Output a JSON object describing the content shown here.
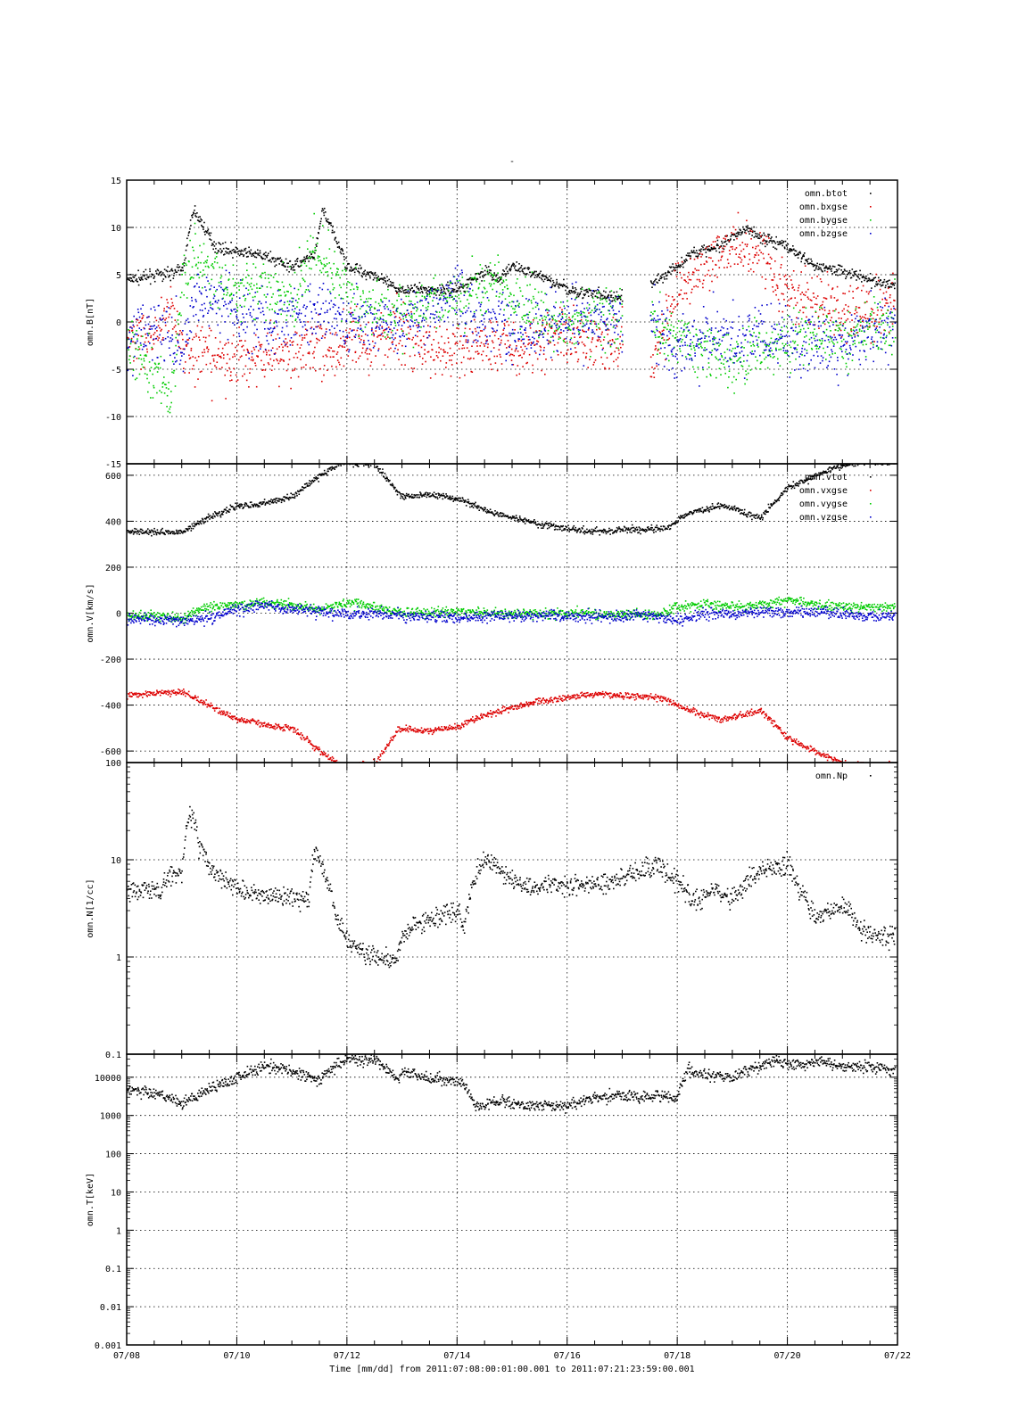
{
  "figure": {
    "title": "-",
    "footer": "Time [mm/dd]  from 2011:07:08:00:01:00.001  to  2011:07:21:23:59:00.001",
    "x_tick_labels": [
      "07/08",
      "07/10",
      "07/12",
      "07/14",
      "07/16",
      "07/18",
      "07/20",
      "07/22"
    ]
  },
  "colors": {
    "black": "#000000",
    "red": "#dd0000",
    "green": "#00cc00",
    "blue": "#0000cc"
  },
  "chart_data": [
    {
      "type": "scatter",
      "ylabel": "omn.B[nT]",
      "ylim": [
        -15,
        15
      ],
      "yscale": "linear",
      "xlim": [
        "07/08",
        "07/22"
      ],
      "ytick_labels": [
        "-15",
        "-10",
        "-5",
        "0",
        "5",
        "10",
        "15"
      ],
      "grid": true,
      "legend_position": "top-right",
      "series": [
        {
          "name": "omn.btot",
          "color": "#000000",
          "noise": 0.4,
          "x": [
            0,
            0.5,
            1.0,
            1.2,
            1.4,
            1.6,
            2.0,
            2.5,
            3.0,
            3.4,
            3.55,
            3.7,
            4.0,
            4.5,
            4.9,
            5.0,
            5.5,
            6.0,
            6.5,
            6.75,
            7.0,
            7.5,
            8.0,
            8.5,
            9.0,
            9.3,
            9.5,
            10.0,
            10.3,
            10.8,
            11.0,
            11.3,
            11.5,
            12.0,
            12.5,
            13.0,
            13.5,
            13.95
          ],
          "y": [
            4.5,
            5,
            5.5,
            12,
            10,
            8,
            7.5,
            7,
            6,
            7,
            12,
            10,
            6,
            5,
            3.5,
            3.5,
            3.5,
            3.5,
            5.5,
            4.5,
            6,
            5,
            3.5,
            3,
            2.5,
            null,
            4,
            6,
            7.5,
            8,
            9,
            10,
            9,
            8,
            6,
            5.5,
            4.5,
            4
          ]
        },
        {
          "name": "omn.bxgse",
          "color": "#dd0000",
          "noise": 2.0,
          "x": [
            0,
            0.5,
            0.8,
            1.0,
            1.5,
            2.0,
            2.5,
            3.0,
            3.5,
            3.8,
            4.0,
            4.5,
            4.9,
            5.0,
            5.5,
            6.0,
            6.5,
            6.75,
            7.0,
            7.5,
            8.0,
            8.5,
            9.0,
            9.3,
            9.5,
            10.0,
            10.5,
            11.0,
            11.5,
            12.0,
            12.5,
            13.0,
            13.5,
            13.95
          ],
          "y": [
            -2,
            -1,
            2,
            -3,
            -4,
            -4,
            -3,
            -3,
            -2,
            -4,
            -2,
            -2,
            -1,
            -1,
            -3,
            -3,
            -2,
            -2,
            -3,
            -2,
            -1,
            -2,
            -2,
            null,
            -4,
            3,
            6,
            8,
            8,
            3,
            2,
            1,
            1,
            2
          ]
        },
        {
          "name": "omn.bygse",
          "color": "#00cc00",
          "noise": 2.0,
          "x": [
            0,
            0.5,
            0.8,
            1.0,
            1.2,
            1.5,
            2.0,
            2.5,
            3.0,
            3.4,
            3.6,
            4.0,
            4.5,
            4.9,
            5.0,
            5.5,
            6.0,
            6.5,
            6.75,
            7.0,
            7.5,
            8.0,
            8.5,
            9.0,
            9.3,
            9.5,
            10.0,
            10.5,
            11.0,
            11.5,
            12.0,
            12.5,
            13.0,
            13.5,
            13.95
          ],
          "y": [
            -2,
            -5,
            -8,
            4,
            7,
            5,
            3,
            4,
            2,
            8,
            6,
            3,
            1,
            1,
            1,
            2,
            3,
            4,
            4,
            2,
            1,
            0,
            1,
            0,
            null,
            0,
            -2,
            -3,
            -4,
            -3,
            -2,
            -1,
            -2,
            0,
            0
          ]
        },
        {
          "name": "omn.bzgse",
          "color": "#0000cc",
          "noise": 2.2,
          "x": [
            0,
            0.5,
            1.0,
            1.2,
            1.5,
            2.0,
            2.5,
            3.0,
            3.5,
            4.0,
            4.5,
            4.9,
            5.0,
            5.5,
            6.0,
            6.5,
            6.75,
            7.0,
            7.5,
            8.0,
            8.5,
            9.0,
            9.3,
            9.5,
            10.0,
            10.5,
            11.0,
            11.5,
            12.0,
            12.5,
            13.0,
            13.5,
            13.95
          ],
          "y": [
            -2,
            0,
            -3,
            3,
            2,
            1,
            0,
            1,
            1,
            0,
            0,
            0,
            0,
            1,
            3,
            0,
            1,
            -1,
            0,
            0,
            0,
            0,
            null,
            0,
            -3,
            -1,
            -2,
            -1,
            -2,
            -2,
            -2,
            -1,
            -1
          ]
        }
      ]
    },
    {
      "type": "scatter",
      "ylabel": "omn.V[km/s]",
      "ylim": [
        -650,
        650
      ],
      "yscale": "linear",
      "xlim": [
        "07/08",
        "07/22"
      ],
      "ytick_labels": [
        "-600",
        "-400",
        "-200",
        "0",
        "200",
        "400",
        "600"
      ],
      "grid": true,
      "legend_position": "top-right",
      "series": [
        {
          "name": "omn.vtot",
          "color": "#000000",
          "noise": 9,
          "x": [
            0,
            0.5,
            1.0,
            1.5,
            2.0,
            2.5,
            3.0,
            3.5,
            3.9,
            4.0,
            4.5,
            4.9,
            5.0,
            5.5,
            6.0,
            6.5,
            6.75,
            7.0,
            7.5,
            8.0,
            8.2,
            8.6,
            9.0,
            9.5,
            9.8,
            10.2,
            10.8,
            11.5,
            12.0,
            12.5,
            13.0,
            13.5,
            13.95
          ],
          "y": [
            360,
            355,
            355,
            420,
            470,
            480,
            510,
            600,
            660,
            660,
            650,
            530,
            510,
            520,
            500,
            450,
            430,
            420,
            390,
            370,
            365,
            360,
            365,
            370,
            375,
            440,
            470,
            420,
            550,
            600,
            650,
            660,
            660
          ]
        },
        {
          "name": "omn.vxgse",
          "color": "#dd0000",
          "noise": 9,
          "x": [
            0,
            0.5,
            1.0,
            1.5,
            2.0,
            2.5,
            3.0,
            3.5,
            3.9,
            4.0,
            4.5,
            4.9,
            5.0,
            5.5,
            6.0,
            6.5,
            6.75,
            7.0,
            7.5,
            8.0,
            8.2,
            8.6,
            9.0,
            9.5,
            9.8,
            10.2,
            10.8,
            11.5,
            12.0,
            12.5,
            13.0,
            13.5,
            13.95
          ],
          "y": [
            -355,
            -345,
            -340,
            -400,
            -460,
            -480,
            -500,
            -600,
            -660,
            -660,
            -650,
            -510,
            -500,
            -510,
            -490,
            -440,
            -425,
            -410,
            -380,
            -365,
            -355,
            -350,
            -355,
            -360,
            -375,
            -420,
            -460,
            -420,
            -540,
            -600,
            -650,
            -660,
            -660
          ]
        },
        {
          "name": "omn.vygse",
          "color": "#00cc00",
          "noise": 14,
          "x": [
            0,
            0.5,
            1.0,
            1.3,
            1.5,
            2.0,
            2.5,
            3.0,
            3.5,
            4.0,
            4.5,
            4.9,
            5.0,
            5.5,
            6.0,
            6.5,
            6.75,
            7.0,
            7.5,
            8.0,
            8.2,
            8.5,
            9.0,
            9.3,
            9.5,
            10.0,
            10.5,
            11.0,
            11.5,
            12.0,
            12.5,
            13.0,
            13.5,
            13.95
          ],
          "y": [
            -10,
            -5,
            -20,
            15,
            30,
            40,
            50,
            40,
            20,
            50,
            30,
            10,
            10,
            5,
            10,
            5,
            0,
            0,
            0,
            0,
            5,
            -5,
            0,
            0,
            -10,
            30,
            40,
            30,
            40,
            60,
            40,
            30,
            30,
            30
          ]
        },
        {
          "name": "omn.vzgse",
          "color": "#0000cc",
          "noise": 16,
          "x": [
            0,
            0.5,
            1.0,
            1.5,
            2.0,
            2.5,
            3.0,
            3.5,
            4.0,
            4.5,
            4.9,
            5.0,
            5.5,
            6.0,
            6.5,
            6.75,
            7.0,
            7.5,
            8.0,
            8.5,
            9.0,
            9.3,
            9.5,
            10.0,
            10.5,
            11.0,
            11.5,
            12.0,
            12.5,
            13.0,
            13.5,
            13.95
          ],
          "y": [
            -20,
            -25,
            -30,
            -20,
            20,
            40,
            20,
            10,
            0,
            0,
            0,
            -10,
            -10,
            -15,
            -15,
            -10,
            -10,
            -10,
            -10,
            -10,
            -10,
            0,
            -10,
            -30,
            0,
            0,
            10,
            0,
            10,
            0,
            -10,
            -10
          ]
        }
      ]
    },
    {
      "type": "scatter",
      "ylabel": "omn.N[1/cc]",
      "ylim": [
        0.1,
        100
      ],
      "yscale": "log",
      "xlim": [
        "07/08",
        "07/22"
      ],
      "ytick_labels": [
        "0.1",
        "1",
        "10",
        "100"
      ],
      "grid": true,
      "legend_position": "top-right",
      "series": [
        {
          "name": "omn.Np",
          "color": "#000000",
          "noise": 0.07,
          "x": [
            0,
            0.3,
            0.6,
            0.8,
            1.0,
            1.1,
            1.2,
            1.3,
            1.5,
            1.8,
            2.0,
            2.5,
            3.0,
            3.3,
            3.4,
            3.6,
            3.8,
            4.0,
            4.5,
            4.9,
            5.0,
            5.5,
            6.0,
            6.05,
            6.1,
            6.5,
            7.0,
            7.4,
            7.5,
            8.0,
            8.5,
            9.0,
            9.3,
            9.6,
            10.0,
            10.3,
            10.6,
            11.0,
            11.5,
            12.0,
            12.2,
            12.5,
            13.0,
            13.3,
            13.5,
            13.95
          ],
          "y": [
            5,
            5,
            5,
            7,
            7,
            25,
            30,
            15,
            8,
            6,
            5,
            4.5,
            4,
            4,
            13,
            7,
            2.5,
            1.5,
            1,
            1,
            1.8,
            2.5,
            3,
            3,
            1.6,
            11,
            6,
            5,
            5.5,
            5.5,
            5.5,
            6.5,
            7.5,
            9,
            6,
            3.5,
            5,
            4,
            8,
            9,
            5,
            2.5,
            3.5,
            2,
            1.8,
            1.7
          ]
        }
      ]
    },
    {
      "type": "scatter",
      "ylabel": "omn.T[keV]",
      "ylim": [
        0.001,
        40000
      ],
      "yscale": "log",
      "xlim": [
        "07/08",
        "07/22"
      ],
      "ytick_labels": [
        "0.001",
        "0.01",
        "0.1",
        "1",
        "10",
        "100",
        "1000",
        "10000"
      ],
      "grid": true,
      "series": [
        {
          "name": "",
          "color": "#000000",
          "noise": 0.1,
          "x": [
            0,
            0.5,
            1.0,
            1.5,
            2.0,
            2.5,
            3.0,
            3.5,
            3.8,
            4.0,
            4.5,
            4.9,
            5.0,
            5.5,
            6.0,
            6.05,
            6.3,
            6.7,
            7.0,
            7.5,
            8.0,
            8.5,
            9.0,
            9.3,
            9.5,
            10.0,
            10.2,
            10.5,
            11.0,
            11.5,
            11.8,
            12.0,
            12.5,
            13.0,
            13.5,
            13.95
          ],
          "y": [
            5000,
            4000,
            2000,
            5000,
            10000,
            20000,
            15000,
            8000,
            20000,
            30000,
            30000,
            8000,
            15000,
            10000,
            8000,
            8000,
            1600,
            2500,
            2000,
            2000,
            1800,
            3000,
            3500,
            3000,
            3500,
            3000,
            15000,
            12000,
            10000,
            20000,
            30000,
            20000,
            25000,
            20000,
            20000,
            15000
          ]
        }
      ]
    }
  ]
}
